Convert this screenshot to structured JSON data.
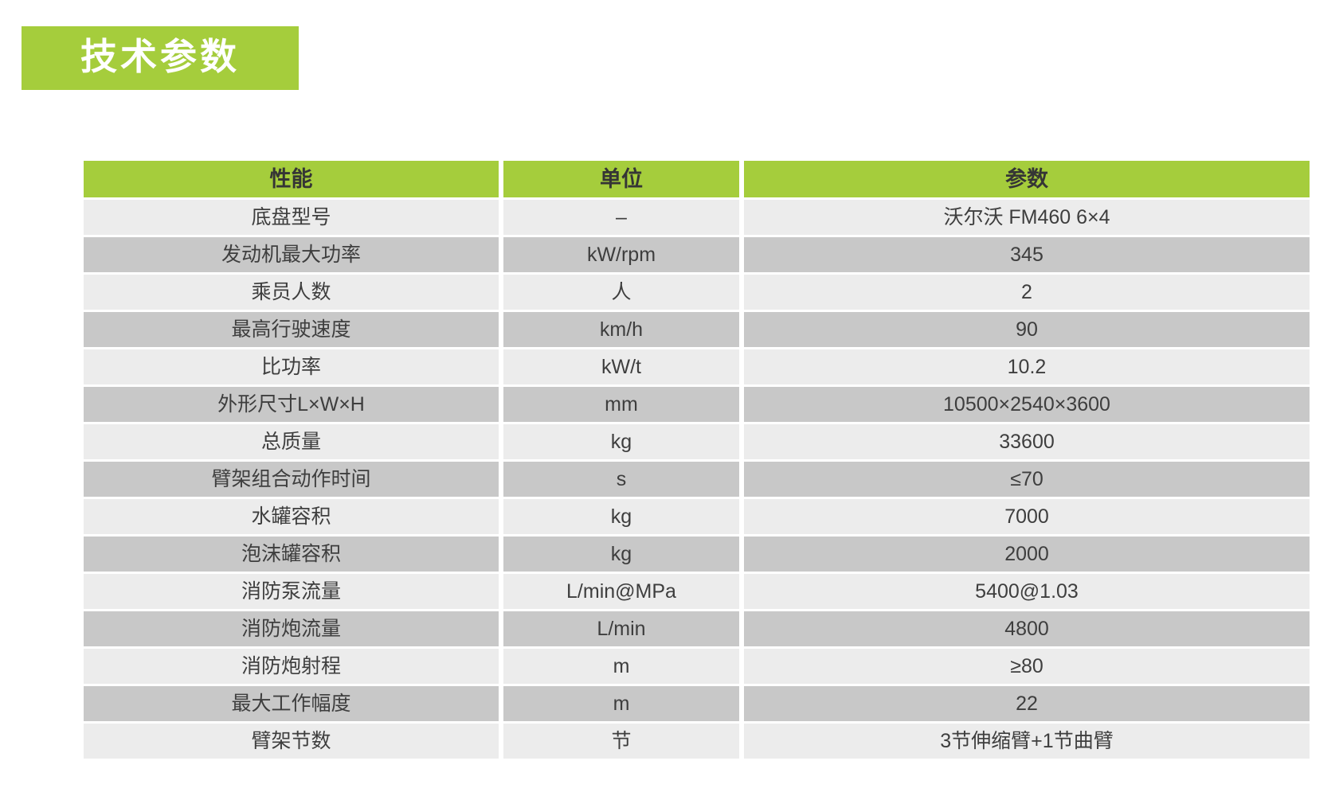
{
  "page": {
    "title": "技术参数",
    "accent_green": "#a5cd3c",
    "row_light_gray": "#ececec",
    "row_dark_gray": "#c8c8c8",
    "background": "#ffffff"
  },
  "table": {
    "headers": [
      "性能",
      "单位",
      "参数"
    ],
    "rows": [
      {
        "name": "底盘型号",
        "unit": "–",
        "value": "沃尔沃 FM460 6×4"
      },
      {
        "name": "发动机最大功率",
        "unit": "kW/rpm",
        "value": "345"
      },
      {
        "name": "乘员人数",
        "unit": "人",
        "value": "2"
      },
      {
        "name": "最高行驶速度",
        "unit": "km/h",
        "value": "90"
      },
      {
        "name": "比功率",
        "unit": "kW/t",
        "value": "10.2"
      },
      {
        "name": "外形尺寸L×W×H",
        "unit": "mm",
        "value": "10500×2540×3600"
      },
      {
        "name": "总质量",
        "unit": "kg",
        "value": "33600"
      },
      {
        "name": "臂架组合动作时间",
        "unit": "s",
        "value": "≤70"
      },
      {
        "name": "水罐容积",
        "unit": "kg",
        "value": "7000"
      },
      {
        "name": "泡沫罐容积",
        "unit": "kg",
        "value": "2000"
      },
      {
        "name": "消防泵流量",
        "unit": "L/min@MPa",
        "value": "5400@1.03"
      },
      {
        "name": "消防炮流量",
        "unit": "L/min",
        "value": "4800"
      },
      {
        "name": "消防炮射程",
        "unit": "m",
        "value": "≥80"
      },
      {
        "name": "最大工作幅度",
        "unit": "m",
        "value": "22"
      },
      {
        "name": "臂架节数",
        "unit": "节",
        "value": "3节伸缩臂+1节曲臂"
      }
    ]
  }
}
